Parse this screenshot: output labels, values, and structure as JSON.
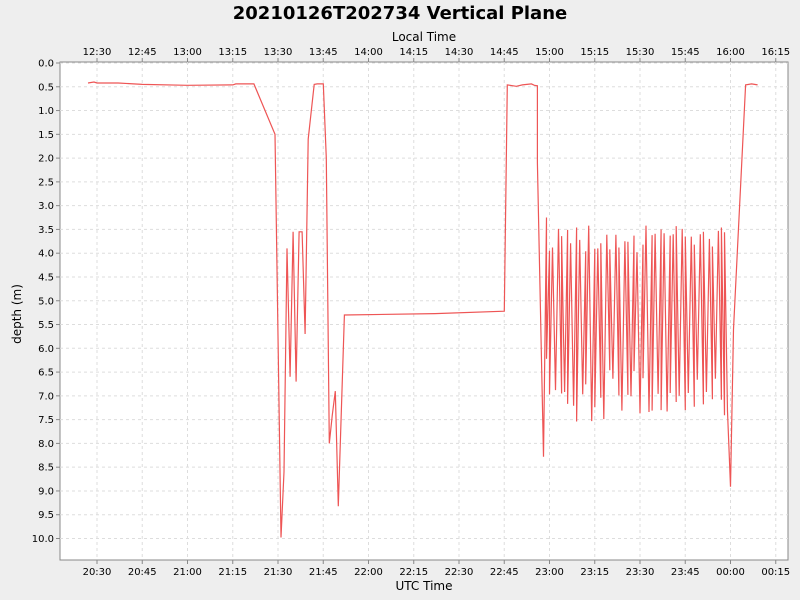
{
  "chart_data": {
    "type": "line",
    "title": "20210126T202734 Vertical Plane",
    "xlabel": "UTC Time",
    "x2label": "Local Time",
    "ylabel": "depth (m)",
    "x_unit": "UTC time (HH:MM on 2021-01-26 → 27)",
    "xlim": [
      "20:20",
      "16:20"
    ],
    "ylim": [
      0.0,
      10.4
    ],
    "y_inverted": true,
    "grid": true,
    "series_color": "#ee5555",
    "yticks": [
      "0.0",
      "0.5",
      "1.0",
      "1.5",
      "2.0",
      "2.5",
      "3.0",
      "3.5",
      "4.0",
      "4.5",
      "5.0",
      "5.5",
      "6.0",
      "6.5",
      "7.0",
      "7.5",
      "8.0",
      "8.5",
      "9.0",
      "9.5",
      "10.0"
    ],
    "xticks_utc": [
      "20:30",
      "20:45",
      "21:00",
      "21:15",
      "21:30",
      "21:45",
      "22:00",
      "22:15",
      "22:30",
      "22:45",
      "23:00",
      "23:15",
      "23:30",
      "23:45",
      "00:00",
      "00:15"
    ],
    "xticks_local": [
      "12:30",
      "12:45",
      "13:00",
      "13:15",
      "13:30",
      "13:45",
      "14:00",
      "14:15",
      "14:30",
      "14:45",
      "15:00",
      "15:15",
      "15:30",
      "15:45",
      "16:00",
      "16:15"
    ],
    "series": [
      {
        "x": [
          "20:27",
          "20:29",
          "20:30",
          "20:37",
          "20:45",
          "21:00",
          "21:15",
          "21:16",
          "21:22",
          "21:29",
          "21:31",
          "21:32",
          "21:33",
          "21:34",
          "21:35",
          "21:36",
          "21:37",
          "21:38",
          "21:39",
          "21:40",
          "21:42",
          "21:43",
          "21:45",
          "21:46",
          "21:47",
          "21:48",
          "21:49",
          "21:50",
          "21:52",
          "22:22",
          "22:45",
          "22:46",
          "22:49",
          "22:51",
          "22:54",
          "22:55",
          "22:56",
          "22:56",
          "22:58",
          "22:59",
          "22:59",
          "23:00",
          "23:00",
          "23:01",
          "23:02",
          "23:03",
          "23:04",
          "23:04",
          "23:05",
          "23:06",
          "23:06",
          "23:07",
          "23:08",
          "23:09",
          "23:09",
          "23:10",
          "23:11",
          "23:12",
          "23:12",
          "23:13",
          "23:14",
          "23:15",
          "23:15",
          "23:16",
          "23:17",
          "23:17",
          "23:18",
          "23:19",
          "23:20",
          "23:20",
          "23:21",
          "23:22",
          "23:23",
          "23:23",
          "23:24",
          "23:25",
          "23:26",
          "23:26",
          "23:27",
          "23:28",
          "23:28",
          "23:29",
          "23:30",
          "23:31",
          "23:31",
          "23:32",
          "23:33",
          "23:34",
          "23:34",
          "23:35",
          "23:36",
          "23:37",
          "23:37",
          "23:38",
          "23:39",
          "23:40",
          "23:40",
          "23:41",
          "23:42",
          "23:42",
          "23:43",
          "23:44",
          "23:45",
          "23:45",
          "23:46",
          "23:47",
          "23:48",
          "23:48",
          "23:49",
          "23:50",
          "23:51",
          "23:51",
          "23:52",
          "23:53",
          "23:54",
          "23:54",
          "23:55",
          "23:56",
          "23:57",
          "23:57",
          "23:58",
          "23:58",
          "23:59",
          "23:59",
          "00:00",
          "00:01",
          "00:05",
          "00:07",
          "00:09"
        ],
        "y": [
          0.42,
          0.4,
          0.42,
          0.42,
          0.45,
          0.47,
          0.46,
          0.44,
          0.44,
          1.5,
          9.98,
          8.6,
          3.9,
          6.6,
          3.55,
          6.7,
          3.55,
          3.55,
          5.7,
          1.6,
          0.45,
          0.44,
          0.44,
          2.0,
          8.0,
          7.4,
          6.9,
          9.32,
          5.3,
          5.27,
          5.22,
          0.46,
          0.49,
          0.46,
          0.44,
          0.47,
          0.48,
          2.1,
          8.28,
          3.25,
          6.22,
          3.95,
          6.97,
          3.88,
          6.88,
          3.49,
          6.95,
          3.64,
          6.92,
          3.51,
          7.17,
          3.79,
          7.21,
          3.46,
          7.54,
          3.72,
          6.97,
          3.96,
          6.76,
          3.42,
          7.53,
          3.91,
          7.24,
          3.9,
          7.04,
          3.79,
          7.49,
          3.61,
          6.46,
          3.92,
          6.64,
          3.61,
          6.99,
          3.88,
          7.31,
          3.75,
          6.98,
          3.76,
          7.01,
          3.63,
          6.48,
          3.98,
          7.37,
          3.82,
          6.63,
          3.42,
          7.34,
          3.62,
          7.31,
          3.59,
          6.96,
          3.5,
          7.3,
          3.58,
          7.33,
          3.63,
          6.94,
          3.6,
          7.13,
          3.43,
          7.0,
          3.49,
          7.3,
          3.65,
          6.94,
          3.65,
          7.23,
          3.82,
          6.66,
          3.6,
          7.18,
          3.55,
          6.92,
          3.7,
          7.07,
          3.86,
          6.64,
          3.53,
          7.08,
          3.46,
          7.41,
          3.56,
          7.34,
          7.33,
          8.91,
          5.6,
          0.46,
          0.44,
          0.46
        ]
      }
    ]
  }
}
